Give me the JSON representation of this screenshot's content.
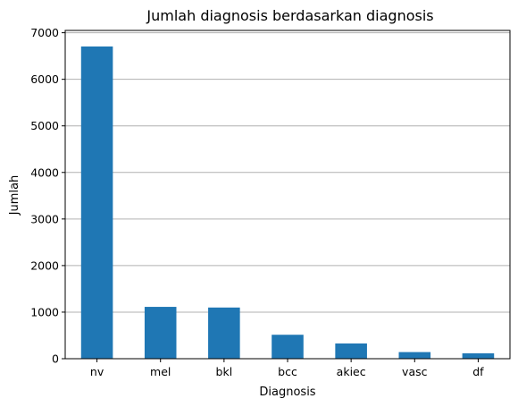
{
  "chart_data": {
    "type": "bar",
    "title": "Jumlah diagnosis berdasarkan diagnosis",
    "xlabel": "Diagnosis",
    "ylabel": "Jumlah",
    "categories": [
      "nv",
      "mel",
      "bkl",
      "bcc",
      "akiec",
      "vasc",
      "df"
    ],
    "values": [
      6705,
      1113,
      1099,
      514,
      327,
      142,
      115
    ],
    "ylim": [
      0,
      7050
    ],
    "yticks": [
      0,
      1000,
      2000,
      3000,
      4000,
      5000,
      6000,
      7000
    ],
    "grid": "y-axis",
    "legend": "none",
    "colors": {
      "bar": "#1f77b4",
      "grid": "#b0b0b0",
      "axis": "#000000"
    }
  }
}
